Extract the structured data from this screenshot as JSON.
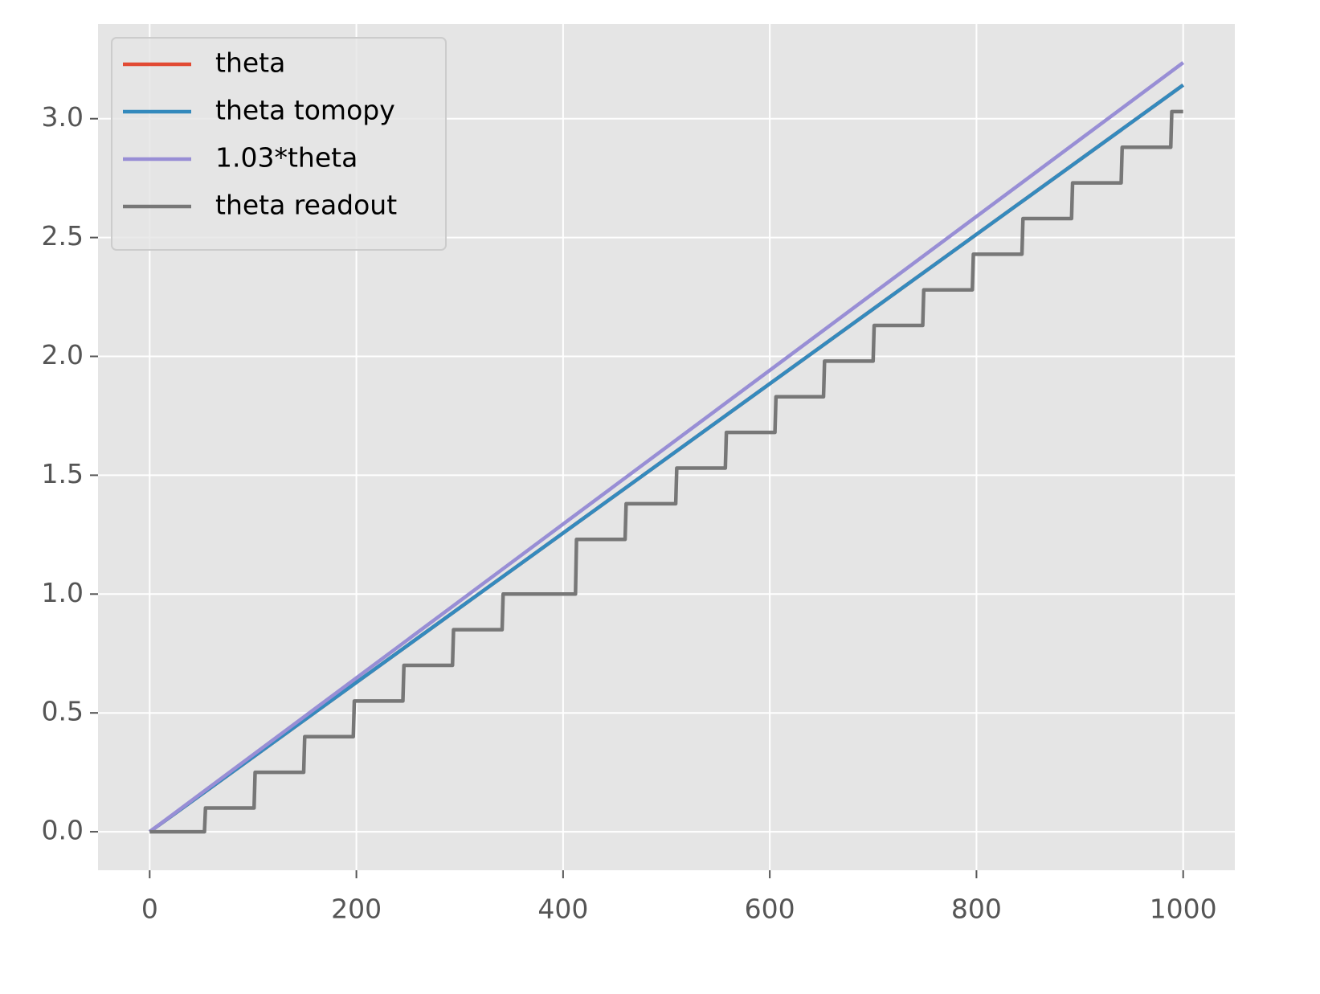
{
  "chart_data": {
    "type": "line",
    "series": [
      {
        "name": "theta",
        "color": "#E24A33",
        "x": [
          0,
          1000
        ],
        "values": [
          0,
          3.1416
        ]
      },
      {
        "name": "theta tomopy",
        "color": "#348ABD",
        "x": [
          0,
          1000
        ],
        "values": [
          0,
          3.1416
        ]
      },
      {
        "name": "1.03*theta",
        "color": "#988ED5",
        "x": [
          0,
          1000
        ],
        "values": [
          0,
          3.2358
        ]
      },
      {
        "name": "theta readout",
        "color": "#777777",
        "x": [
          0,
          53,
          54,
          101,
          102,
          149,
          150,
          197,
          198,
          245,
          246,
          293,
          294,
          341,
          342,
          412,
          413,
          460,
          461,
          509,
          510,
          557,
          558,
          605,
          606,
          652,
          653,
          700,
          701,
          748,
          749,
          796,
          797,
          844,
          845,
          892,
          893,
          940,
          941,
          988,
          989,
          1000
        ],
        "values": [
          0,
          0,
          0.1,
          0.1,
          0.25,
          0.25,
          0.4,
          0.4,
          0.55,
          0.55,
          0.7,
          0.7,
          0.85,
          0.85,
          1.0,
          1.0,
          1.23,
          1.23,
          1.38,
          1.38,
          1.53,
          1.53,
          1.68,
          1.68,
          1.83,
          1.83,
          1.98,
          1.98,
          2.13,
          2.13,
          2.28,
          2.28,
          2.43,
          2.43,
          2.58,
          2.58,
          2.73,
          2.73,
          2.88,
          2.88,
          3.03,
          3.03
        ]
      }
    ],
    "xlim": [
      -50,
      1050
    ],
    "ylim": [
      -0.162,
      3.398
    ],
    "xticks": [
      0,
      200,
      400,
      600,
      800,
      1000
    ],
    "yticks": [
      {
        "value": 0,
        "label": "0.0"
      },
      0.5,
      {
        "value": 1,
        "label": "1.0"
      },
      1.5,
      {
        "value": 2,
        "label": "2.0"
      },
      2.5,
      {
        "value": 3,
        "label": "3.0"
      }
    ],
    "grid": true,
    "legend": "upper left"
  }
}
